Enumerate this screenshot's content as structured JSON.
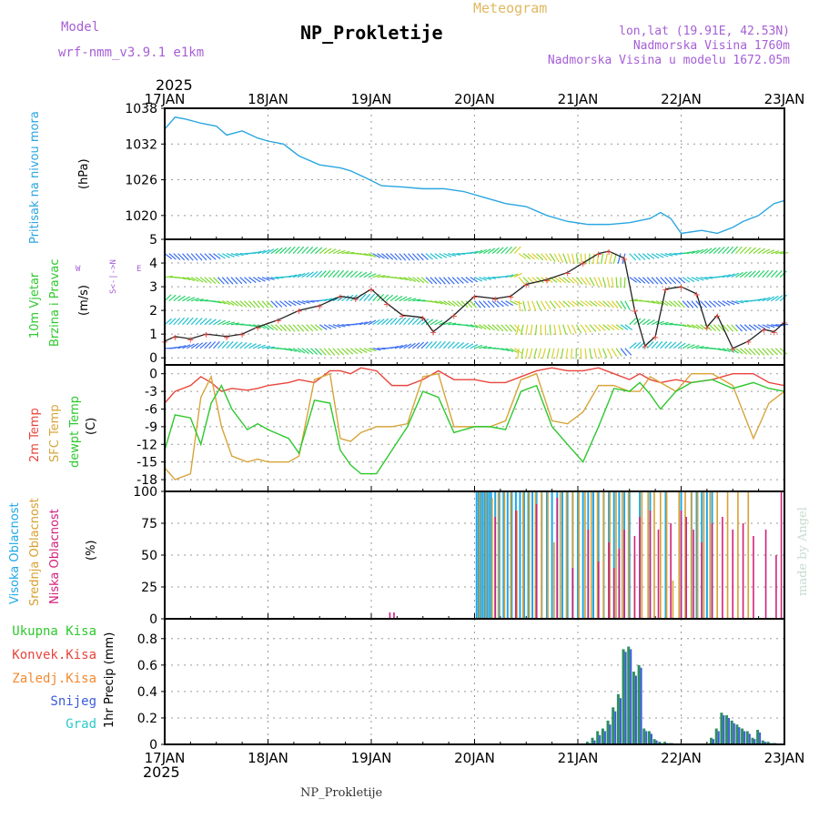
{
  "header": {
    "title": "NP_Prokletije",
    "subtitle": "Meteogram",
    "model_label": "Model",
    "model_name": "wrf-nmm_v3.9.1 e1km",
    "coords": "lon,lat (19.91E, 42.53N)",
    "altitude": "Nadmorska Visina 1760m",
    "model_altitude": "Nadmorska Visina u modelu 1672.05m",
    "credit": "made by Angel",
    "footer": "NP_Prokletije"
  },
  "colors": {
    "pressure": "#2aa6e0",
    "temp2m": "#e8453c",
    "sfc": "#d6a53a",
    "dewpt": "#2ec82e",
    "high_cloud": "#1ea7e8",
    "mid_cloud": "#d8a030",
    "low_cloud": "#d2207c",
    "precip": "#2f8f63",
    "snow": "#3b5bdb",
    "title_purple": "#a65fd6",
    "title_gold": "#e0b860"
  },
  "chart_data": [
    {
      "type": "line",
      "panel": "pressure",
      "ylabel": [
        "Pritisak na nivou mora",
        "(hPa)"
      ],
      "yticks": [
        1020,
        1026,
        1032,
        1038
      ],
      "ylim": [
        1016,
        1038
      ],
      "x_days": [
        0,
        0.1,
        0.2,
        0.35,
        0.5,
        0.6,
        0.75,
        0.9,
        1.0,
        1.15,
        1.3,
        1.5,
        1.7,
        1.8,
        1.95,
        2.1,
        2.3,
        2.5,
        2.7,
        2.9,
        3.1,
        3.3,
        3.5,
        3.7,
        3.9,
        4.1,
        4.3,
        4.5,
        4.7,
        4.8,
        4.9,
        5.0,
        5.2,
        5.35,
        5.5,
        5.6,
        5.75,
        5.9,
        6.0
      ],
      "values": [
        1034.5,
        1036.5,
        1036.2,
        1035.5,
        1035.0,
        1033.5,
        1034.2,
        1033.0,
        1032.5,
        1032.0,
        1030.0,
        1028.5,
        1028.0,
        1027.5,
        1026.3,
        1025.0,
        1024.8,
        1024.5,
        1024.5,
        1024.0,
        1023.0,
        1022.0,
        1021.5,
        1020.0,
        1019.0,
        1018.5,
        1018.5,
        1018.8,
        1019.5,
        1020.5,
        1019.5,
        1017.0,
        1017.5,
        1017.0,
        1018.0,
        1019.0,
        1020.0,
        1022.0,
        1022.5
      ],
      "grid": true
    },
    {
      "type": "line",
      "panel": "wind",
      "ylabel": [
        "10m Vjetar",
        "Brzina i Pravac",
        "(m/s)"
      ],
      "yticks": [
        0,
        1,
        2,
        3,
        4,
        5
      ],
      "ylim": [
        -0.3,
        5
      ],
      "compass": "W <-|-> E, N up, S down",
      "x_days": [
        0,
        0.1,
        0.25,
        0.4,
        0.6,
        0.75,
        0.9,
        1.1,
        1.3,
        1.5,
        1.7,
        1.85,
        2.0,
        2.15,
        2.3,
        2.5,
        2.6,
        2.8,
        3.0,
        3.2,
        3.35,
        3.5,
        3.7,
        3.9,
        4.05,
        4.2,
        4.3,
        4.45,
        4.55,
        4.65,
        4.75,
        4.85,
        5.0,
        5.15,
        5.25,
        5.35,
        5.5,
        5.65,
        5.8,
        5.9,
        6.0
      ],
      "values": [
        0.7,
        0.9,
        0.8,
        1.0,
        0.9,
        1.0,
        1.3,
        1.6,
        2.0,
        2.2,
        2.6,
        2.5,
        2.9,
        2.3,
        1.8,
        1.7,
        1.1,
        1.8,
        2.6,
        2.5,
        2.6,
        3.1,
        3.3,
        3.6,
        4.0,
        4.4,
        4.5,
        4.2,
        2.0,
        0.5,
        0.9,
        2.9,
        3.0,
        2.7,
        1.3,
        1.8,
        0.4,
        0.7,
        1.2,
        1.1,
        1.5
      ],
      "grid": true
    },
    {
      "type": "line",
      "panel": "temperature",
      "ylabel": [
        "2m Temp",
        "SFC Temp",
        "dewpt Temp",
        "(C)"
      ],
      "yticks": [
        0,
        -3,
        -6,
        -9,
        -12,
        -15,
        -18
      ],
      "ylim": [
        -20,
        1.5
      ],
      "x_days": [
        0,
        0.1,
        0.25,
        0.35,
        0.45,
        0.55,
        0.65,
        0.8,
        0.9,
        1.0,
        1.2,
        1.3,
        1.45,
        1.6,
        1.7,
        1.8,
        1.9,
        2.05,
        2.2,
        2.35,
        2.5,
        2.65,
        2.8,
        3.0,
        3.15,
        3.3,
        3.45,
        3.6,
        3.75,
        3.9,
        4.05,
        4.2,
        4.35,
        4.5,
        4.6,
        4.7,
        4.8,
        4.95,
        5.1,
        5.3,
        5.5,
        5.7,
        5.85,
        6.0
      ],
      "series": [
        {
          "name": "2m Temp",
          "values": [
            -5,
            -3,
            -2,
            -0.5,
            -1.5,
            -3,
            -2.5,
            -2.8,
            -2.5,
            -2,
            -1.5,
            -1,
            -1.5,
            0.5,
            0.5,
            0,
            1,
            0.5,
            -2,
            -2,
            -1,
            0.5,
            -1,
            -1,
            -1.5,
            -1.5,
            -0.5,
            0.5,
            1,
            0.5,
            0.5,
            1,
            0,
            -1,
            0,
            -1,
            -1.5,
            -1,
            -1.5,
            -1,
            0,
            0,
            -1.5,
            -2
          ]
        },
        {
          "name": "SFC Temp",
          "values": [
            -16,
            -18,
            -17,
            -4,
            -0.5,
            -9,
            -14,
            -15,
            -14.5,
            -15,
            -15,
            -14,
            -1,
            0,
            -11,
            -11.5,
            -10,
            -9,
            -9,
            -8.5,
            -0.5,
            0,
            -9,
            -9,
            -9,
            -8,
            -1,
            0,
            -8,
            -8.5,
            -6.5,
            -2,
            -2,
            -3,
            -3,
            -0.5,
            -1.5,
            -3,
            0,
            0,
            -2,
            -11,
            -5,
            -3
          ]
        },
        {
          "name": "dewpt Temp",
          "values": [
            -13,
            -7,
            -7.5,
            -12,
            -5,
            -2,
            -6,
            -9.5,
            -8.5,
            -9.5,
            -11,
            -13.5,
            -4.5,
            -5,
            -13,
            -15.5,
            -17,
            -17,
            -13,
            -9,
            -3,
            -4,
            -10,
            -9,
            -9,
            -9.5,
            -3,
            -2,
            -9,
            -12,
            -15,
            -9,
            -2.5,
            -3,
            -1.5,
            -3.5,
            -6,
            -3,
            -1.5,
            -1,
            -2.5,
            -1.5,
            -2.5,
            -3
          ]
        }
      ],
      "grid": true
    },
    {
      "type": "bar",
      "panel": "cloud",
      "ylabel": [
        "Visoka Oblacnost",
        "Srednja Oblacnost",
        "Niska Oblacnost",
        "(%)"
      ],
      "yticks": [
        0,
        25,
        50,
        75,
        100
      ],
      "ylim": [
        0,
        100
      ],
      "series": [
        {
          "name": "Visoka Oblacnost",
          "x_days": [
            3.02,
            3.04,
            3.06,
            3.08,
            3.1,
            3.12,
            3.14,
            3.16,
            3.2,
            3.24,
            3.28,
            3.32,
            3.36,
            3.4,
            3.44,
            3.48,
            3.52,
            3.56,
            3.6,
            3.65,
            3.7,
            3.75,
            3.8,
            3.85,
            3.9,
            3.95,
            4.0,
            4.05,
            4.1,
            4.15,
            4.2,
            4.25,
            4.3,
            4.35,
            4.4,
            4.45,
            4.5,
            4.6,
            4.7,
            4.85,
            5.0,
            5.1,
            5.15,
            5.2,
            5.25,
            5.3
          ],
          "values": [
            100,
            100,
            100,
            100,
            100,
            100,
            100,
            100,
            100,
            100,
            100,
            100,
            100,
            100,
            100,
            100,
            100,
            100,
            100,
            100,
            100,
            100,
            100,
            100,
            100,
            100,
            100,
            100,
            100,
            100,
            100,
            100,
            100,
            100,
            100,
            100,
            100,
            100,
            100,
            100,
            100,
            100,
            100,
            100,
            100,
            100
          ]
        },
        {
          "name": "Srednja Oblacnost",
          "x_days": [
            3.05,
            3.11,
            3.17,
            3.23,
            3.29,
            3.35,
            3.41,
            3.47,
            3.53,
            3.59,
            3.65,
            3.71,
            3.77,
            3.83,
            3.89,
            3.95,
            4.01,
            4.07,
            4.13,
            4.19,
            4.25,
            4.31,
            4.37,
            4.43,
            4.49,
            4.55,
            4.62,
            4.68,
            4.74,
            4.8,
            4.86,
            4.92,
            4.98,
            5.04,
            5.1,
            5.16,
            5.22,
            5.28,
            5.35,
            5.45,
            5.55,
            5.65
          ],
          "values": [
            100,
            100,
            95,
            100,
            100,
            100,
            85,
            100,
            100,
            100,
            100,
            100,
            60,
            100,
            100,
            100,
            100,
            100,
            100,
            100,
            100,
            100,
            100,
            100,
            100,
            50,
            100,
            100,
            100,
            100,
            100,
            30,
            100,
            100,
            100,
            100,
            100,
            100,
            100,
            100,
            100,
            100
          ]
        },
        {
          "name": "Niska Oblacnost",
          "x_days": [
            2.18,
            2.22,
            3.2,
            3.4,
            3.6,
            3.8,
            3.95,
            4.1,
            4.2,
            4.3,
            4.35,
            4.4,
            4.45,
            4.55,
            4.6,
            4.7,
            4.78,
            4.9,
            5.0,
            5.05,
            5.12,
            5.2,
            5.3,
            5.4,
            5.5,
            5.6,
            5.7,
            5.82,
            5.92,
            5.97
          ],
          "values": [
            5,
            5,
            80,
            85,
            90,
            95,
            40,
            70,
            45,
            60,
            40,
            55,
            70,
            65,
            80,
            85,
            70,
            75,
            85,
            80,
            70,
            60,
            75,
            80,
            70,
            75,
            65,
            70,
            50,
            100
          ]
        }
      ],
      "grid": true
    },
    {
      "type": "bar",
      "panel": "precip",
      "ylabel": [
        "1hr Precip (mm)"
      ],
      "legend": [
        "Ukupna Kisa",
        "Konvek.Kisa",
        "Zaledj.Kisa",
        "Snijeg",
        "Grad"
      ],
      "yticks": [
        0,
        0.2,
        0.4,
        0.6,
        0.8
      ],
      "ylim": [
        0,
        0.95
      ],
      "x_days": [
        4.1,
        4.15,
        4.2,
        4.25,
        4.3,
        4.35,
        4.4,
        4.45,
        4.5,
        4.55,
        4.6,
        4.65,
        4.7,
        4.75,
        4.8,
        4.85,
        4.9,
        5.3,
        5.35,
        5.4,
        5.45,
        5.5,
        5.55,
        5.6,
        5.65,
        5.7,
        5.75,
        5.8,
        5.85,
        5.9
      ],
      "values": [
        0.02,
        0.05,
        0.1,
        0.12,
        0.18,
        0.28,
        0.38,
        0.72,
        0.74,
        0.55,
        0.6,
        0.12,
        0.1,
        0.04,
        0.02,
        0.02,
        0.01,
        0.05,
        0.12,
        0.24,
        0.22,
        0.18,
        0.15,
        0.12,
        0.1,
        0.05,
        0.11,
        0.03,
        0.02,
        0.01
      ],
      "snow_values": [
        0.01,
        0.03,
        0.07,
        0.1,
        0.15,
        0.25,
        0.35,
        0.7,
        0.72,
        0.52,
        0.58,
        0.1,
        0.08,
        0.03,
        0.01,
        0.01,
        0.01,
        0.04,
        0.1,
        0.22,
        0.2,
        0.16,
        0.13,
        0.1,
        0.08,
        0.04,
        0.09,
        0.02,
        0.01,
        0.01
      ],
      "grid": true
    }
  ],
  "axis": {
    "year": "2025",
    "dates": [
      "17JAN",
      "18JAN",
      "19JAN",
      "20JAN",
      "21JAN",
      "22JAN",
      "23JAN"
    ]
  }
}
